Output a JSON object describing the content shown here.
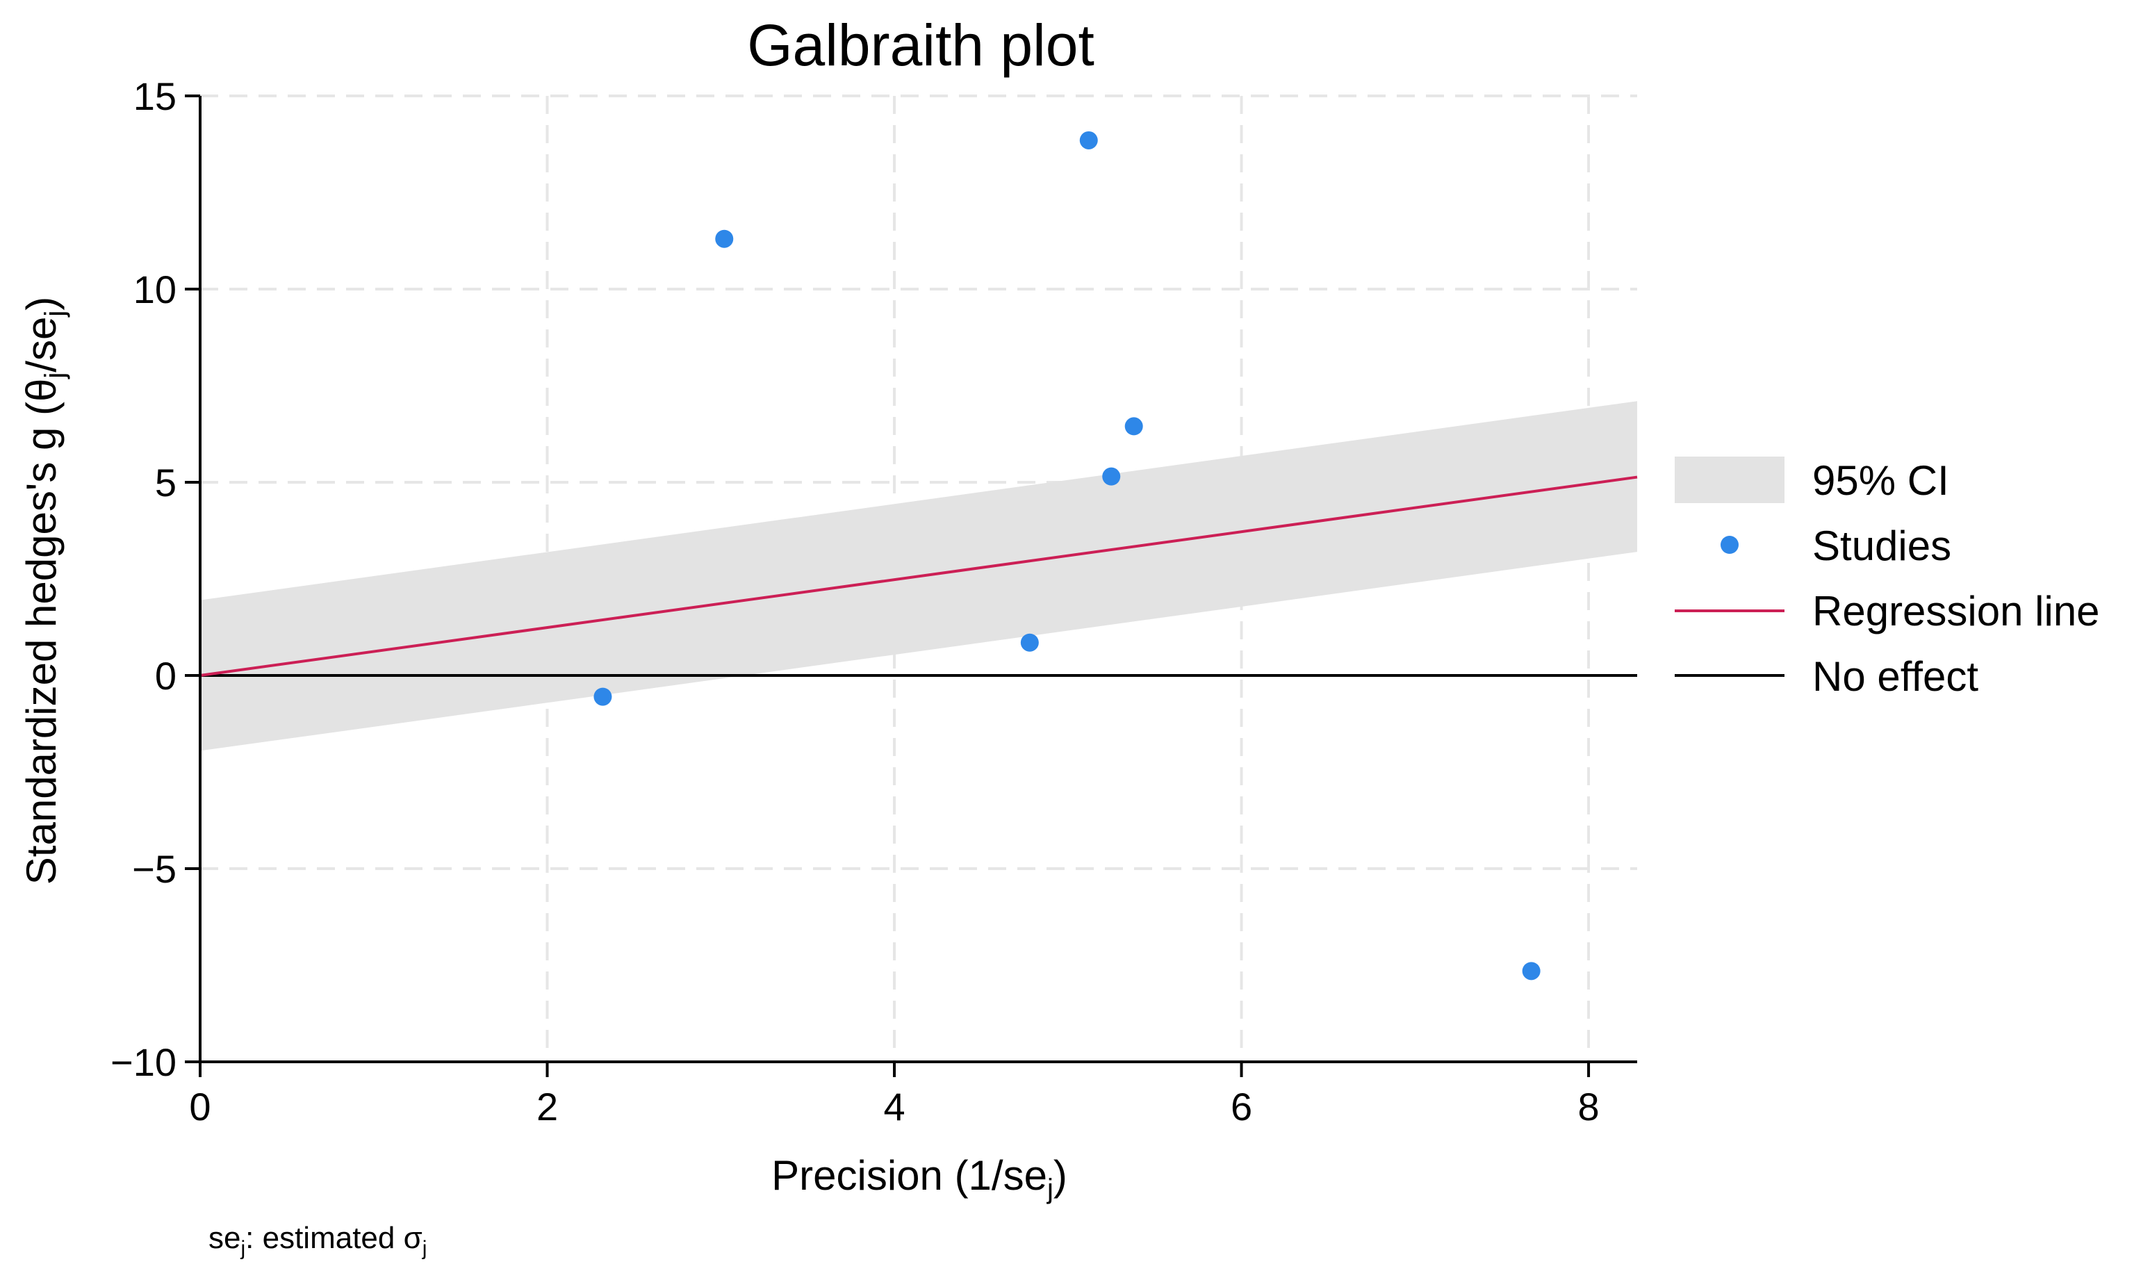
{
  "chart_data": {
    "type": "scatter",
    "title": "Galbraith plot",
    "xlabel": "Precision (1/se",
    "xlabel_sub": "j",
    "xlabel_tail": ")",
    "ylabel": "Standardized hedges's g (θ",
    "ylabel_sub1": "j",
    "ylabel_mid": "/se",
    "ylabel_sub2": "j",
    "ylabel_tail": ")",
    "xlim": [
      0,
      8.28
    ],
    "ylim": [
      -10,
      15
    ],
    "xticks": [
      0,
      2,
      4,
      6,
      8
    ],
    "xtick_labels": [
      "0",
      "2",
      "4",
      "6",
      "8"
    ],
    "yticks": [
      -10,
      -5,
      0,
      5,
      10,
      15
    ],
    "ytick_labels": [
      "−10",
      "−5",
      "0",
      "5",
      "10",
      "15"
    ],
    "grid": true,
    "series": [
      {
        "name": "Studies",
        "kind": "points",
        "color": "#2e87e8",
        "points": [
          {
            "x": 2.32,
            "y": -0.55
          },
          {
            "x": 3.02,
            "y": 11.3
          },
          {
            "x": 4.78,
            "y": 0.85
          },
          {
            "x": 5.12,
            "y": 13.85
          },
          {
            "x": 5.25,
            "y": 5.15
          },
          {
            "x": 5.38,
            "y": 6.45
          },
          {
            "x": 7.67,
            "y": -7.65
          }
        ]
      },
      {
        "name": "Regression line",
        "kind": "line",
        "color": "#cc1f55",
        "intercept": 0,
        "slope": 0.62
      },
      {
        "name": "95% CI",
        "kind": "band",
        "color": "#e3e3e3",
        "lower": [
          {
            "x": 0,
            "y": -1.95
          },
          {
            "x": 8.28,
            "y": 3.2
          }
        ],
        "upper": [
          {
            "x": 0,
            "y": 1.95
          },
          {
            "x": 8.28,
            "y": 7.1
          }
        ]
      },
      {
        "name": "No effect",
        "kind": "hline",
        "color": "#000000",
        "y": 0
      }
    ],
    "legend": {
      "position": "right",
      "entries": [
        "95% CI",
        "Studies",
        "Regression line",
        "No effect"
      ]
    },
    "note_prefix": "se",
    "note_prefix_sub": "j",
    "note_text": ": estimated σ",
    "note_sub": "j"
  }
}
